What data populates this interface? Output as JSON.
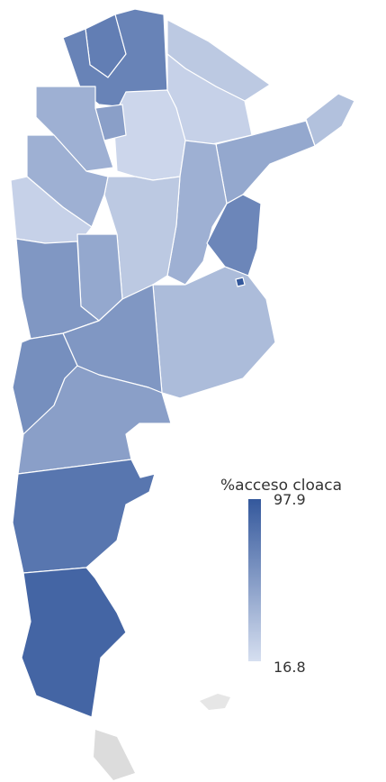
{
  "map": {
    "legend": {
      "title": "%acceso cloaca",
      "max": 97.9,
      "min": 16.8,
      "max_color": "#34589c",
      "min_color": "#d6dff0"
    },
    "regions": [
      75,
      72,
      30,
      25,
      22,
      55,
      45,
      35,
      50,
      45,
      70,
      30,
      45,
      25,
      50,
      60,
      38,
      60,
      65,
      55,
      80,
      90,
      97.9
    ]
  }
}
